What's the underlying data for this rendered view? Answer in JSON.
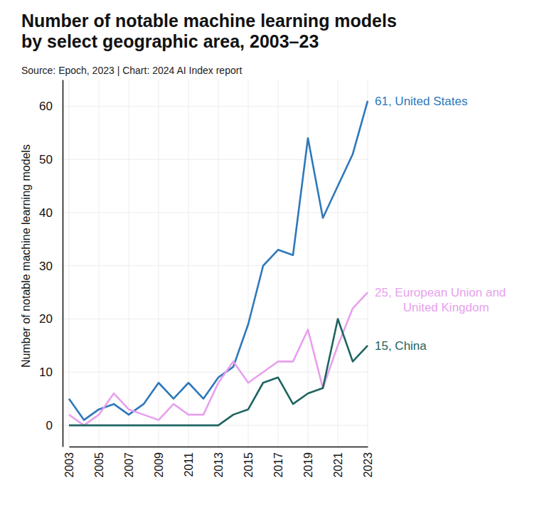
{
  "chart_data": {
    "type": "line",
    "title": "Number of notable machine learning models by select geographic area, 2003–23",
    "subtitle": "Source: Epoch, 2023 | Chart: 2024 AI Index report",
    "y_label": "Number of notable machine learning models",
    "x": [
      2003,
      2004,
      2005,
      2006,
      2007,
      2008,
      2009,
      2010,
      2011,
      2012,
      2013,
      2014,
      2015,
      2016,
      2017,
      2018,
      2019,
      2020,
      2021,
      2022,
      2023
    ],
    "series": [
      {
        "color": "#2e78bb",
        "values": [
          5,
          1,
          3,
          4,
          2,
          4,
          8,
          5,
          8,
          5,
          9,
          11,
          19,
          30,
          33,
          32,
          54,
          39,
          45,
          51,
          61
        ]
      },
      {
        "color": "#e8a0ee",
        "values": [
          2,
          0,
          2,
          6,
          3,
          2,
          1,
          4,
          2,
          2,
          8,
          12,
          8,
          10,
          12,
          12,
          18,
          7,
          15,
          22,
          25
        ]
      },
      {
        "color": "#1e6460",
        "values": [
          0,
          0,
          0,
          0,
          0,
          0,
          0,
          0,
          0,
          0,
          0,
          2,
          3,
          8,
          9,
          4,
          6,
          7,
          20,
          12,
          15
        ]
      }
    ],
    "annotations": [
      [
        "61, United States"
      ],
      [
        "25, European Union and",
        "United Kingdom"
      ],
      [
        "15, China"
      ]
    ],
    "xlim": [
      2003,
      2023
    ],
    "xticks": [
      2003,
      2005,
      2007,
      2009,
      2011,
      2013,
      2015,
      2017,
      2019,
      2021,
      2023
    ],
    "ylim": [
      -4,
      65
    ],
    "yticks": [
      0,
      10,
      20,
      30,
      40,
      50,
      60
    ],
    "grid": true
  }
}
